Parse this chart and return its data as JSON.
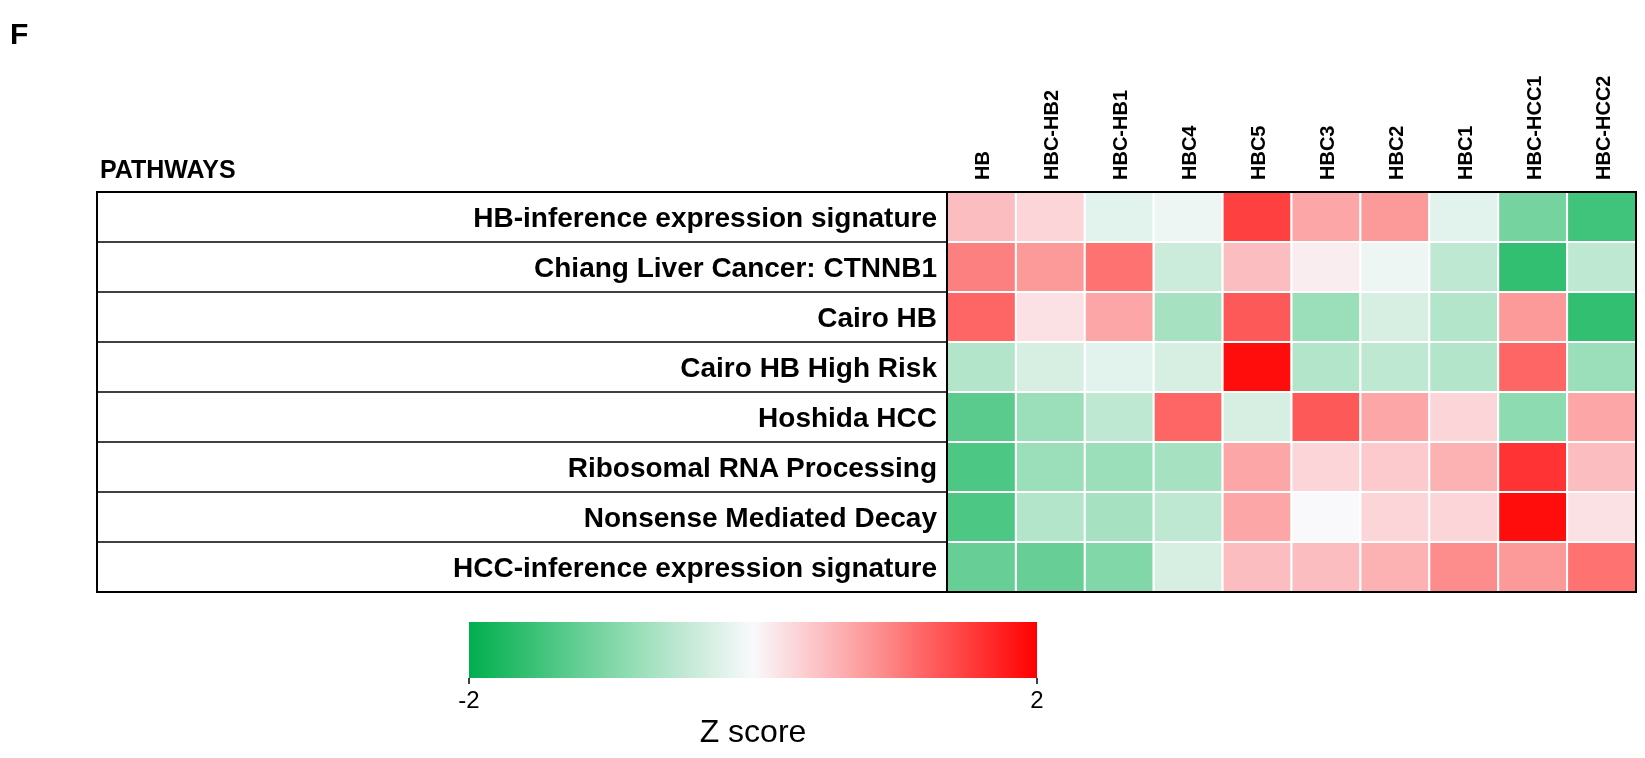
{
  "chart_data": {
    "type": "heatmap",
    "title": "F",
    "annotations": [
      "PATHWAYS"
    ],
    "clabel": "Z score",
    "categories": [
      "HB",
      "HBC-HB2",
      "HBC-HB1",
      "HBC4",
      "HBC5",
      "HBC3",
      "HBC2",
      "HBC1",
      "HBC-HCC1",
      "HBC-HCC2"
    ],
    "y_categories": [
      "HB-inference expression signature",
      "Chiang Liver Cancer: CTNNB1",
      "Cairo HB",
      "Cairo HB High Risk",
      "Hoshida HCC",
      "Ribosomal RNA Processing",
      "Nonsense Mediated Decay",
      "HCC-inference expression signature"
    ],
    "cells": [
      [
        0.5,
        0.3,
        -0.2,
        -0.1,
        1.5,
        0.7,
        0.8,
        -0.2,
        -1.1,
        -1.5
      ],
      [
        1.0,
        0.8,
        1.1,
        -0.4,
        0.5,
        0.1,
        -0.1,
        -0.5,
        -1.6,
        -0.5
      ],
      [
        1.2,
        0.2,
        0.7,
        -0.7,
        1.3,
        -0.8,
        -0.3,
        -0.6,
        0.8,
        -1.6
      ],
      [
        -0.6,
        -0.3,
        -0.2,
        -0.3,
        1.9,
        -0.6,
        -0.5,
        -0.6,
        1.2,
        -0.8
      ],
      [
        -1.3,
        -0.8,
        -0.5,
        1.2,
        -0.3,
        1.3,
        0.7,
        0.3,
        -0.9,
        0.7
      ],
      [
        -1.4,
        -0.8,
        -0.8,
        -0.7,
        0.7,
        0.3,
        0.4,
        0.6,
        1.6,
        0.5
      ],
      [
        -1.4,
        -0.6,
        -0.7,
        -0.5,
        0.7,
        0.0,
        0.3,
        0.3,
        1.9,
        0.2
      ],
      [
        -1.2,
        -1.2,
        -1.0,
        -0.3,
        0.5,
        0.5,
        0.6,
        0.9,
        0.8,
        1.1
      ]
    ],
    "clim": [
      -2,
      2
    ],
    "cticks": [
      -2,
      2
    ]
  }
}
